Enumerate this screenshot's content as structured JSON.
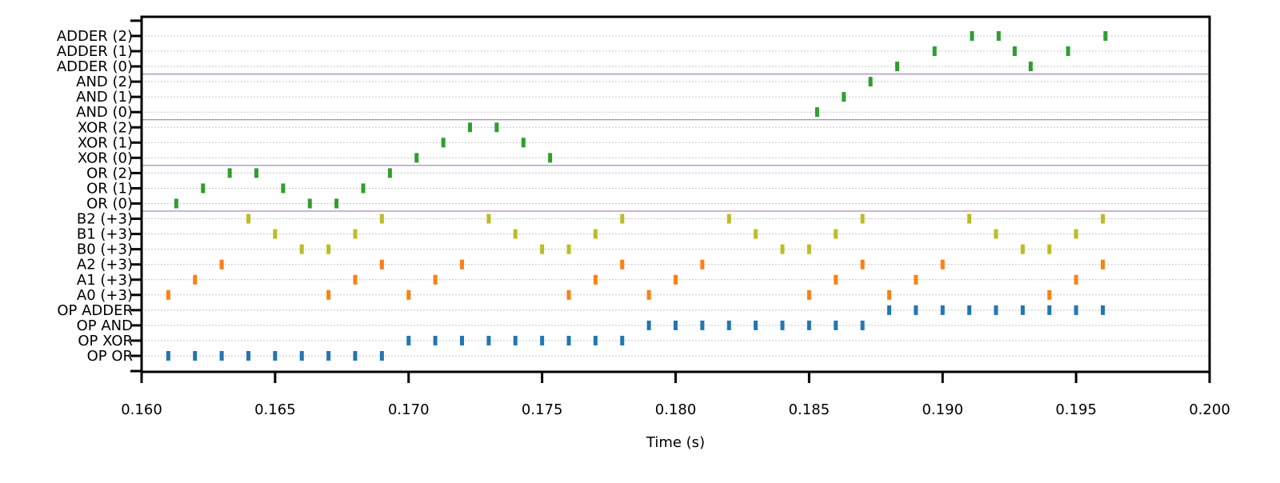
{
  "chart_data": {
    "type": "scatter",
    "title": "",
    "xlabel": "Time (s)",
    "ylabel": "",
    "xlim": [
      0.16,
      0.2
    ],
    "x_ticks": [
      "0.160",
      "0.165",
      "0.170",
      "0.175",
      "0.180",
      "0.185",
      "0.190",
      "0.195",
      "0.200"
    ],
    "grid": "horizontal dotted per row",
    "rows": [
      "OP OR",
      "OP XOR",
      "OP AND",
      "OP ADDER",
      "A0 (+3)",
      "A1 (+3)",
      "A2 (+3)",
      "B0 (+3)",
      "B1 (+3)",
      "B2 (+3)",
      "OR (0)",
      "OR (1)",
      "OR (2)",
      "XOR (0)",
      "XOR (1)",
      "XOR (2)",
      "AND (0)",
      "AND (1)",
      "AND (2)",
      "ADDER (0)",
      "ADDER (1)",
      "ADDER (2)"
    ],
    "group_separators_above_rows": [
      "B2 (+3)",
      "OR (2)",
      "XOR (2)",
      "AND (2)"
    ],
    "colors": {
      "op": "#1f77b4",
      "a": "#ff7f0e",
      "b": "#bcbd22",
      "result": "#2ca02c",
      "separator": "#9467bd",
      "grid": "#b0b0b0"
    },
    "series": [
      {
        "row": "OP OR",
        "color": "#1f77b4",
        "x": [
          0.161,
          0.162,
          0.163,
          0.164,
          0.165,
          0.166,
          0.167,
          0.168,
          0.169
        ]
      },
      {
        "row": "OP XOR",
        "color": "#1f77b4",
        "x": [
          0.17,
          0.171,
          0.172,
          0.173,
          0.174,
          0.175,
          0.176,
          0.177,
          0.178
        ]
      },
      {
        "row": "OP AND",
        "color": "#1f77b4",
        "x": [
          0.179,
          0.18,
          0.181,
          0.182,
          0.183,
          0.184,
          0.185,
          0.186,
          0.187
        ]
      },
      {
        "row": "OP ADDER",
        "color": "#1f77b4",
        "x": [
          0.188,
          0.189,
          0.19,
          0.191,
          0.192,
          0.193,
          0.194,
          0.195,
          0.196
        ]
      },
      {
        "row": "A0 (+3)",
        "color": "#ff7f0e",
        "x": [
          0.161,
          0.167,
          0.17,
          0.176,
          0.179,
          0.185,
          0.188,
          0.194
        ]
      },
      {
        "row": "A1 (+3)",
        "color": "#ff7f0e",
        "x": [
          0.162,
          0.168,
          0.171,
          0.177,
          0.18,
          0.186,
          0.189,
          0.195
        ]
      },
      {
        "row": "A2 (+3)",
        "color": "#ff7f0e",
        "x": [
          0.163,
          0.169,
          0.172,
          0.178,
          0.181,
          0.187,
          0.19,
          0.196
        ]
      },
      {
        "row": "B0 (+3)",
        "color": "#bcbd22",
        "x": [
          0.166,
          0.167,
          0.175,
          0.176,
          0.184,
          0.185,
          0.193,
          0.194
        ]
      },
      {
        "row": "B1 (+3)",
        "color": "#bcbd22",
        "x": [
          0.165,
          0.168,
          0.174,
          0.177,
          0.183,
          0.186,
          0.192,
          0.195
        ]
      },
      {
        "row": "B2 (+3)",
        "color": "#bcbd22",
        "x": [
          0.164,
          0.169,
          0.173,
          0.178,
          0.182,
          0.187,
          0.191,
          0.196
        ]
      },
      {
        "row": "OR (0)",
        "color": "#2ca02c",
        "x": [
          0.1613,
          0.1663,
          0.1673
        ]
      },
      {
        "row": "OR (1)",
        "color": "#2ca02c",
        "x": [
          0.1623,
          0.1653,
          0.1683
        ]
      },
      {
        "row": "OR (2)",
        "color": "#2ca02c",
        "x": [
          0.1633,
          0.1643,
          0.1693
        ]
      },
      {
        "row": "XOR (0)",
        "color": "#2ca02c",
        "x": [
          0.1703,
          0.1753
        ]
      },
      {
        "row": "XOR (1)",
        "color": "#2ca02c",
        "x": [
          0.1713,
          0.1743
        ]
      },
      {
        "row": "XOR (2)",
        "color": "#2ca02c",
        "x": [
          0.1723,
          0.1733
        ]
      },
      {
        "row": "AND (0)",
        "color": "#2ca02c",
        "x": [
          0.1853
        ]
      },
      {
        "row": "AND (1)",
        "color": "#2ca02c",
        "x": [
          0.1863
        ]
      },
      {
        "row": "AND (2)",
        "color": "#2ca02c",
        "x": [
          0.1873
        ]
      },
      {
        "row": "ADDER (0)",
        "color": "#2ca02c",
        "x": [
          0.1883,
          0.1933
        ]
      },
      {
        "row": "ADDER (1)",
        "color": "#2ca02c",
        "x": [
          0.1897,
          0.1927,
          0.1947
        ]
      },
      {
        "row": "ADDER (2)",
        "color": "#2ca02c",
        "x": [
          0.1911,
          0.1921,
          0.1961
        ]
      }
    ]
  }
}
